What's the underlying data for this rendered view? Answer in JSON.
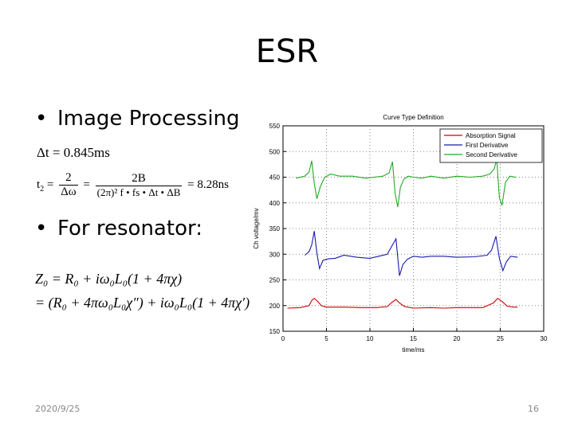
{
  "slide": {
    "title": "ESR",
    "bullet1": "Image Processing",
    "bullet2": "For resonator:",
    "date": "2020/9/25",
    "page": "16"
  },
  "equations": {
    "dt": "Δt = 0.845ms",
    "t2_lhs": "t",
    "t2_sub": "2",
    "frac1_num": "2",
    "frac1_den": "Δω",
    "frac2_num": "2B",
    "frac2_den": "(2π)² f • fs • Δt • ΔB",
    "t2_rhs": "= 8.28ns",
    "z0_line1": "Z₀ = R₀ + iω₀L₀(1 + 4πχ)",
    "z0_line2": "= (R₀ + 4πω₀L₀χ″) + iω₀L₀(1 + 4πχ′)"
  },
  "chart_data": {
    "type": "line",
    "title": "Curve Type Definition",
    "xlabel": "time/ms",
    "ylabel": "Ch voltage/mv",
    "xlim": [
      0,
      30
    ],
    "ylim": [
      150,
      550
    ],
    "xticks": [
      0,
      5,
      10,
      15,
      20,
      25,
      30
    ],
    "yticks": [
      150,
      200,
      250,
      300,
      350,
      400,
      450,
      500,
      550
    ],
    "grid": true,
    "legend_position": "top-right",
    "series": [
      {
        "name": "Absorption Signal",
        "color": "#cc0000",
        "x": [
          0.5,
          2,
          3,
          3.3,
          3.6,
          4,
          4.4,
          5,
          7,
          9,
          10.8,
          12,
          12.5,
          13,
          13.4,
          14,
          15,
          17,
          18.5,
          20,
          23,
          24.2,
          24.7,
          25.2,
          25.8,
          26.5,
          27
        ],
        "y": [
          195,
          196,
          200,
          210,
          214,
          208,
          200,
          197,
          197,
          196,
          196,
          198,
          206,
          212,
          205,
          198,
          195,
          196,
          195,
          196,
          196,
          205,
          214,
          208,
          199,
          197,
          197
        ]
      },
      {
        "name": "First Derivative",
        "color": "#1a1aaa",
        "x": [
          2.5,
          3,
          3.3,
          3.6,
          3.9,
          4.2,
          4.6,
          5.2,
          6,
          7,
          8.5,
          10,
          11,
          12,
          12.6,
          13,
          13.4,
          13.8,
          14.3,
          15,
          16,
          17,
          18.5,
          20,
          22,
          23.5,
          24,
          24.5,
          24.9,
          25.3,
          25.7,
          26.2,
          27
        ],
        "y": [
          298,
          305,
          318,
          345,
          302,
          272,
          288,
          291,
          292,
          298,
          294,
          292,
          296,
          300,
          318,
          330,
          258,
          280,
          290,
          296,
          294,
          296,
          296,
          294,
          295,
          298,
          308,
          335,
          292,
          268,
          285,
          296,
          294
        ]
      },
      {
        "name": "Second Derivative",
        "color": "#22aa22",
        "x": [
          1.5,
          2.5,
          3,
          3.3,
          3.6,
          3.9,
          4.3,
          4.8,
          5.5,
          6.5,
          8,
          9.5,
          10.5,
          11.5,
          12.2,
          12.6,
          12.9,
          13.2,
          13.5,
          13.9,
          14.4,
          15,
          16,
          17,
          18.5,
          20,
          21.5,
          23,
          23.8,
          24.3,
          24.6,
          24.9,
          25.2,
          25.6,
          26.1,
          26.8
        ],
        "y": [
          448,
          452,
          460,
          482,
          438,
          408,
          432,
          450,
          456,
          452,
          452,
          448,
          450,
          452,
          458,
          480,
          418,
          392,
          430,
          446,
          452,
          450,
          448,
          452,
          448,
          452,
          450,
          452,
          456,
          466,
          485,
          410,
          395,
          440,
          452,
          450
        ]
      }
    ]
  }
}
